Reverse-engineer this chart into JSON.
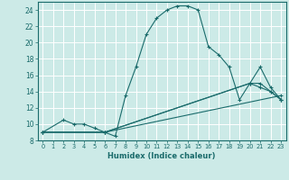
{
  "xlabel": "Humidex (Indice chaleur)",
  "bg_color": "#cceae7",
  "grid_color": "#ffffff",
  "line_color": "#1a6b6b",
  "xlim": [
    -0.5,
    23.5
  ],
  "ylim": [
    8,
    25
  ],
  "xticks": [
    0,
    1,
    2,
    3,
    4,
    5,
    6,
    7,
    8,
    9,
    10,
    11,
    12,
    13,
    14,
    15,
    16,
    17,
    18,
    19,
    20,
    21,
    22,
    23
  ],
  "yticks": [
    8,
    10,
    12,
    14,
    16,
    18,
    20,
    22,
    24
  ],
  "series": [
    {
      "x": [
        0,
        2,
        3,
        4,
        5,
        6,
        7,
        8,
        9,
        10,
        11,
        12,
        13,
        14,
        15,
        16,
        17,
        18,
        19,
        20,
        21,
        22,
        23
      ],
      "y": [
        9,
        10.5,
        10,
        10,
        9.5,
        9,
        8.5,
        13.5,
        17,
        21,
        23,
        24,
        24.5,
        24.5,
        24,
        19.5,
        18.5,
        17,
        13,
        15,
        14.5,
        14,
        13
      ]
    },
    {
      "x": [
        0,
        6,
        23
      ],
      "y": [
        9,
        9,
        13.5
      ]
    },
    {
      "x": [
        0,
        6,
        20,
        21,
        22,
        23
      ],
      "y": [
        9,
        9,
        15,
        17,
        14.5,
        13
      ]
    },
    {
      "x": [
        0,
        6,
        20,
        21,
        22,
        23
      ],
      "y": [
        9,
        9,
        15,
        15,
        14,
        13
      ]
    }
  ]
}
